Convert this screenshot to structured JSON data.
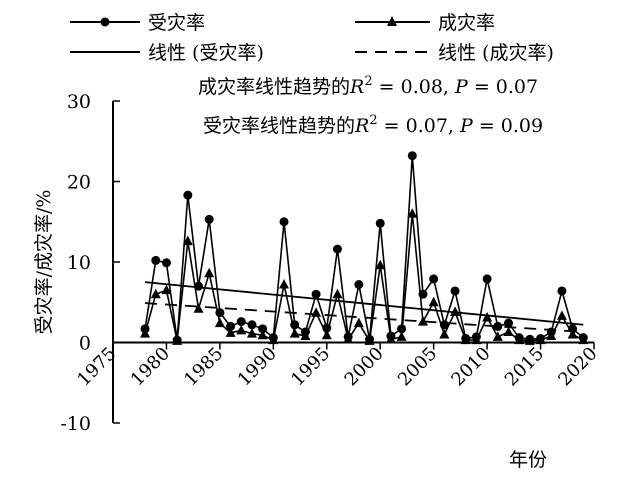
{
  "chart_data": {
    "type": "line",
    "xlabel": "年份",
    "ylabel": "受灾率/成灾率/%",
    "xlim": [
      1975,
      2020
    ],
    "ylim": [
      -10,
      30
    ],
    "xticks": [
      1975,
      1980,
      1985,
      1990,
      1995,
      2000,
      2005,
      2010,
      2015,
      2020
    ],
    "yticks": [
      -10,
      0,
      10,
      20,
      30
    ],
    "grid": false,
    "legend_position": "top",
    "legend": [
      {
        "label": "受灾率",
        "style": "line-circle"
      },
      {
        "label": "成灾率",
        "style": "line-triangle"
      },
      {
        "label": "线性 (受灾率)",
        "style": "solid"
      },
      {
        "label": "线性 (成灾率)",
        "style": "dashed"
      }
    ],
    "annotations": [
      {
        "prefix": "成灾率线性趋势的",
        "stat": "R",
        "sup": "2",
        "rest": " = 0.08, ",
        "pvar": "P",
        "pval": " = 0.07"
      },
      {
        "prefix": "受灾率线性趋势的",
        "stat": "R",
        "sup": "2",
        "rest": " = 0.07, ",
        "pvar": "P",
        "pval": " = 0.09"
      }
    ],
    "x": [
      1978,
      1979,
      1980,
      1981,
      1982,
      1983,
      1984,
      1985,
      1986,
      1987,
      1988,
      1989,
      1990,
      1991,
      1992,
      1993,
      1994,
      1995,
      1996,
      1997,
      1998,
      1999,
      2000,
      2001,
      2002,
      2003,
      2004,
      2005,
      2006,
      2007,
      2008,
      2009,
      2010,
      2011,
      2012,
      2013,
      2014,
      2015,
      2016,
      2017,
      2018,
      2019
    ],
    "series": [
      {
        "name": "受灾率",
        "marker": "circle",
        "values": [
          1.7,
          10.2,
          9.9,
          0.3,
          18.3,
          7.0,
          15.3,
          3.7,
          2.0,
          2.6,
          2.2,
          1.7,
          0.6,
          15.0,
          2.2,
          1.3,
          6.0,
          1.8,
          11.6,
          0.7,
          7.2,
          0.4,
          14.8,
          0.8,
          1.7,
          23.2,
          6.0,
          7.9,
          2.2,
          6.4,
          0.5,
          0.7,
          7.9,
          2.0,
          2.4,
          0.6,
          0.4,
          0.5,
          1.3,
          6.4,
          1.7,
          0.6
        ]
      },
      {
        "name": "成灾率",
        "marker": "triangle",
        "values": [
          1.1,
          6.0,
          6.5,
          0.2,
          12.6,
          4.2,
          8.6,
          2.4,
          1.2,
          1.5,
          1.1,
          0.9,
          0.3,
          7.2,
          1.1,
          0.8,
          3.7,
          0.9,
          6.0,
          0.4,
          2.4,
          0.2,
          9.6,
          0.4,
          0.7,
          16.0,
          2.6,
          5.0,
          1.0,
          3.8,
          0.3,
          0.3,
          3.1,
          0.7,
          1.3,
          0.3,
          0.2,
          0.3,
          0.8,
          3.3,
          1.0,
          0.3
        ]
      }
    ],
    "trendlines": [
      {
        "of": "受灾率",
        "style": "solid",
        "x": [
          1978,
          2019
        ],
        "y": [
          7.5,
          2.2
        ]
      },
      {
        "of": "成灾率",
        "style": "dashed",
        "x": [
          1978,
          2019
        ],
        "y": [
          4.9,
          1.3
        ]
      }
    ]
  }
}
